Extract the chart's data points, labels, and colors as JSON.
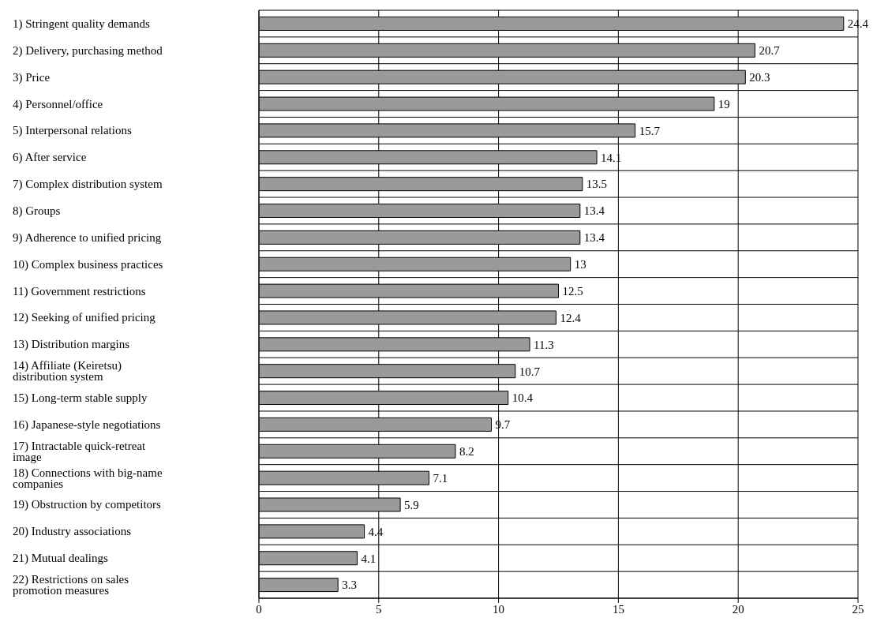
{
  "chart_data": {
    "type": "bar",
    "orientation": "horizontal",
    "categories": [
      "1) Stringent quality demands",
      "2) Delivery, purchasing method",
      "3) Price",
      "4) Personnel/office",
      "5) Interpersonal relations",
      "6) After service",
      "7) Complex distribution system",
      "8) Groups",
      "9) Adherence to unified pricing",
      "10) Complex business practices",
      "11) Government restrictions",
      "12) Seeking of unified pricing",
      "13) Distribution margins",
      "14) Affiliate (Keiretsu) distribution system",
      "15) Long-term stable supply",
      "16) Japanese-style negotiations",
      "17) Intractable quick-retreat image",
      "18) Connections with big-name companies",
      "19) Obstruction by competitors",
      "20) Industry associations",
      "21) Mutual dealings",
      "22) Restrictions on sales promotion measures"
    ],
    "values": [
      24.4,
      20.7,
      20.3,
      19,
      15.7,
      14.1,
      13.5,
      13.4,
      13.4,
      13,
      12.5,
      12.4,
      11.3,
      10.7,
      10.4,
      9.7,
      8.2,
      7.1,
      5.9,
      4.4,
      4.1,
      3.3
    ],
    "color": "#9a9a9a",
    "xlim": [
      0,
      25
    ],
    "xticks": [
      0,
      5,
      10,
      15,
      20,
      25
    ],
    "grid": true,
    "data_labels": true
  }
}
